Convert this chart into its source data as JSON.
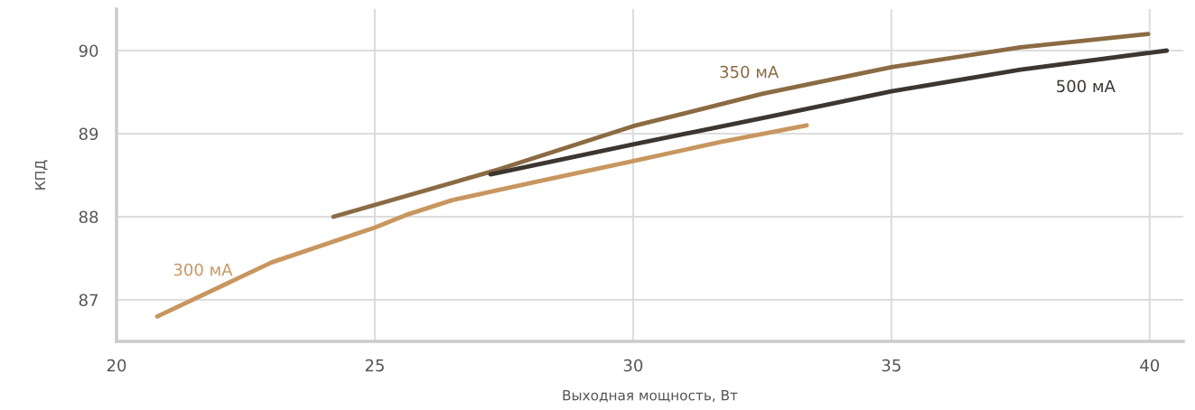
{
  "chart_data": {
    "type": "line",
    "xlabel": "Выходная мощность, Вт",
    "ylabel": "КПД",
    "xlim": [
      20,
      40.65
    ],
    "xticks": [
      20,
      25,
      30,
      35,
      40
    ],
    "ylim": [
      86.5,
      90.5
    ],
    "yticks": [
      87,
      88,
      89,
      90
    ],
    "grid": true,
    "legend": false,
    "marker": "none",
    "line_style": "solid",
    "series": [
      {
        "name": "300 мА",
        "color": "#c8965f",
        "x": [
          20.79,
          23.0,
          25.0,
          25.6,
          26.5,
          28.2,
          30.0,
          31.7,
          33.36
        ],
        "values": [
          86.8,
          87.45,
          87.87,
          88.02,
          88.2,
          88.43,
          88.67,
          88.9,
          89.1
        ]
      },
      {
        "name": "350 мА",
        "color": "#8b6b44",
        "x": [
          24.2,
          27.4,
          30.0,
          32.5,
          35.0,
          37.5,
          39.97
        ],
        "values": [
          88.0,
          88.57,
          89.09,
          89.48,
          89.8,
          90.04,
          90.2
        ]
      },
      {
        "name": "500 мА",
        "color": "#3d3630",
        "x": [
          27.24,
          30.0,
          32.6,
          35.0,
          37.5,
          40.33
        ],
        "values": [
          88.51,
          88.87,
          89.2,
          89.51,
          89.77,
          90.0
        ]
      }
    ]
  }
}
